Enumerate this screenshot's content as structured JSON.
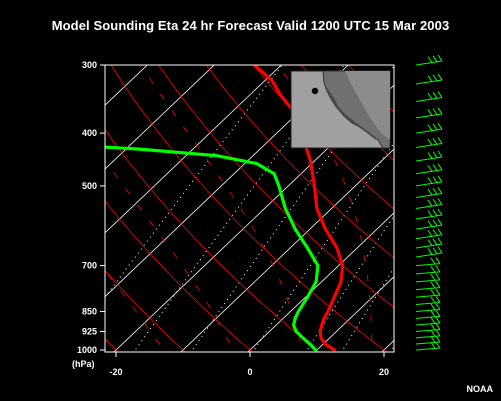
{
  "header": {
    "title": "Model Sounding Eta 24 hr Forecast Valid 1200 UTC  15 Mar 2003"
  },
  "credit": "NOAA",
  "chart_data": {
    "type": "line",
    "subtype": "skew-T log-P sounding",
    "title": "Model Sounding Eta 24 hr Forecast Valid 1200 UTC  15 Mar 2003",
    "xlabel": "",
    "ylabel": "(hPa)",
    "y_scale": "log",
    "y_direction": "pressure decreasing upward",
    "xlim": [
      -22,
      22
    ],
    "ylim": [
      1020,
      300
    ],
    "x_ticks": [
      -20,
      0,
      20
    ],
    "y_ticks": [
      300,
      400,
      500,
      700,
      850,
      925,
      1000
    ],
    "y_tick_labels": [
      "300",
      "400",
      "500",
      "700",
      "850",
      "925",
      "1000"
    ],
    "series": [
      {
        "role": "temperature",
        "color": "#ff0000",
        "points": [
          {
            "p": 1000,
            "t": 12.6
          },
          {
            "p": 975,
            "t": 10.3
          },
          {
            "p": 950,
            "t": 8.7
          },
          {
            "p": 925,
            "t": 7.6
          },
          {
            "p": 900,
            "t": 6.8
          },
          {
            "p": 875,
            "t": 6.1
          },
          {
            "p": 850,
            "t": 5.6
          },
          {
            "p": 800,
            "t": 4.3
          },
          {
            "p": 750,
            "t": 2.9
          },
          {
            "p": 700,
            "t": 0.6
          },
          {
            "p": 650,
            "t": -3.0
          },
          {
            "p": 600,
            "t": -7.7
          },
          {
            "p": 550,
            "t": -12.2
          },
          {
            "p": 500,
            "t": -16.1
          },
          {
            "p": 450,
            "t": -20.6
          },
          {
            "p": 400,
            "t": -26.3
          },
          {
            "p": 370,
            "t": -30.0
          },
          {
            "p": 340,
            "t": -35.5
          },
          {
            "p": 320,
            "t": -39.0
          },
          {
            "p": 300,
            "t": -44.0
          }
        ]
      },
      {
        "role": "dewpoint",
        "color": "#00ff00",
        "points": [
          {
            "p": 1000,
            "t": 9.8
          },
          {
            "p": 975,
            "t": 8.0
          },
          {
            "p": 950,
            "t": 6.0
          },
          {
            "p": 925,
            "t": 4.0
          },
          {
            "p": 900,
            "t": 2.6
          },
          {
            "p": 875,
            "t": 1.8
          },
          {
            "p": 850,
            "t": 1.2
          },
          {
            "p": 800,
            "t": 0.3
          },
          {
            "p": 750,
            "t": -0.8
          },
          {
            "p": 700,
            "t": -3.1
          },
          {
            "p": 650,
            "t": -7.4
          },
          {
            "p": 600,
            "t": -12.2
          },
          {
            "p": 550,
            "t": -16.9
          },
          {
            "p": 500,
            "t": -21.4
          },
          {
            "p": 475,
            "t": -24.0
          },
          {
            "p": 455,
            "t": -28.2
          },
          {
            "p": 440,
            "t": -35.4
          },
          {
            "p": 428,
            "t": -48.0
          },
          {
            "p": 420,
            "t": -60.0
          },
          {
            "p": 415,
            "t": -67.0
          }
        ]
      }
    ],
    "wind_barbs": {
      "color": "#00ff00",
      "location": "right of plot",
      "pressure_levels": [
        1000,
        975,
        950,
        925,
        900,
        875,
        850,
        825,
        800,
        775,
        750,
        725,
        700,
        675,
        650,
        625,
        600,
        575,
        550,
        525,
        500,
        475,
        450,
        425,
        400,
        375,
        350,
        325,
        300
      ]
    },
    "background_lines": {
      "isotherms": {
        "color": "#ffffff",
        "style": "solid",
        "values": [
          -80,
          -70,
          -60,
          -50,
          -40,
          -30,
          -20,
          -10,
          0,
          10,
          20,
          30
        ]
      },
      "dry_adiabats": {
        "color": "#ff0000",
        "style": "solid"
      },
      "moist_adiabats": {
        "color": "#ff0000",
        "style": "dashed"
      },
      "mixing_ratio_lines": {
        "color": "#ffffff",
        "style": "dotted"
      }
    },
    "inset_map": {
      "location": "top-right",
      "marker": "station dot"
    },
    "grid": true,
    "legend": "none"
  }
}
